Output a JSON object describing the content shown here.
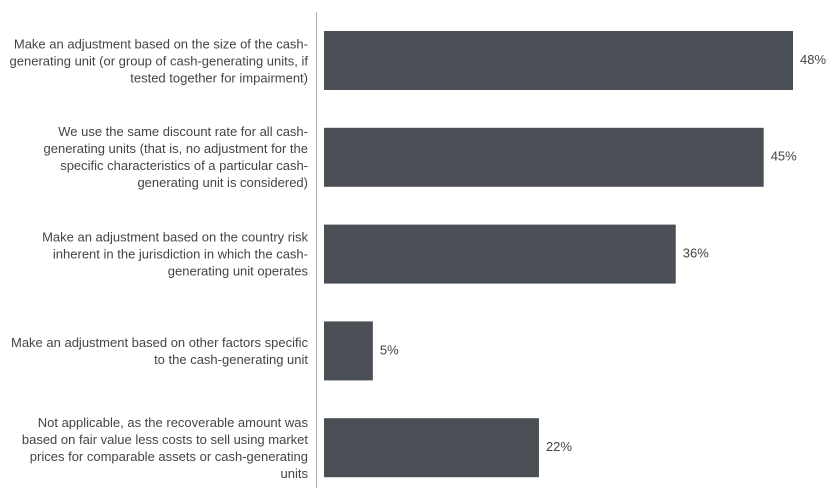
{
  "chart_data": {
    "type": "barh",
    "categories": [
      "Make an adjustment based on the size of the cash-generating unit (or group of cash-generating units, if tested together for impairment)",
      "We use the same discount rate for all cash-generating units (that is, no adjustment for the specific characteristics of a particular cash-generating unit is considered)",
      "Make an adjustment based on the country risk inherent in the jurisdiction in which the cash-generating unit operates",
      "Make an adjustment based on other factors specific to the cash-generating unit",
      "Not applicable, as the recoverable amount was based on fair value less costs to sell using market prices for comparable assets or cash-generating units"
    ],
    "values": [
      48,
      45,
      36,
      5,
      22
    ],
    "value_labels": [
      "48%",
      "45%",
      "36%",
      "5%",
      "22%"
    ],
    "color": "#4a4f55"
  }
}
